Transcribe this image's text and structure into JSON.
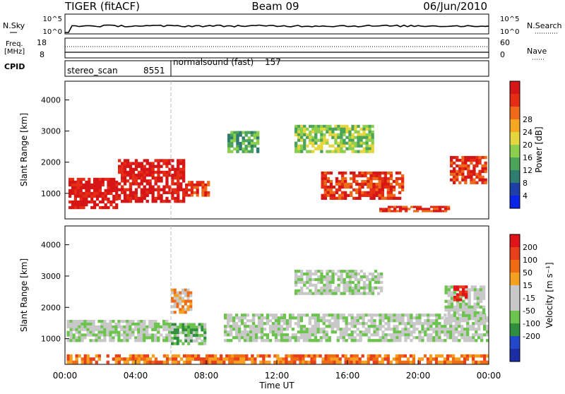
{
  "header": {
    "title": "TIGER (fitACF)",
    "beam": "Beam 09",
    "date": "06/Jun/2010"
  },
  "strips": {
    "nsky": {
      "label": "N.Sky",
      "ticks": [
        "10^5",
        "10^0"
      ],
      "right_label": "N.Search",
      "right_ticks": [
        "10^5",
        "10^0"
      ]
    },
    "freq": {
      "label_line1": "Freq.",
      "label_line2": "[MHz]",
      "ticks": [
        "18",
        "8"
      ],
      "right_label": "Nave",
      "right_ticks": [
        "60",
        "0"
      ]
    },
    "cpid": {
      "label": "CPID",
      "segments": [
        {
          "name": "stereo_scan",
          "id": "8551",
          "start_hour": 0,
          "end_hour": 6
        },
        {
          "name": "normalsound (fast)",
          "id": "157",
          "start_hour": 6,
          "end_hour": 24
        }
      ]
    }
  },
  "chart_data": [
    {
      "type": "heatmap",
      "name_panel": "power",
      "xlabel": "",
      "ylabel": "Slant Range [km]",
      "ylim": [
        180,
        4600
      ],
      "yticks": [
        1000,
        2000,
        3000,
        4000
      ],
      "xlim": [
        0,
        24
      ],
      "colorbar": {
        "label": "Power [dB]",
        "ticks": [
          "4",
          "8",
          "12",
          "16",
          "20",
          "24",
          "28"
        ],
        "colors": [
          "#0b25e8",
          "#1d3fa6",
          "#2e7d6f",
          "#4aa55a",
          "#8ccf4f",
          "#e6d63e",
          "#f5a623",
          "#ee6a18",
          "#e52d16",
          "#d61616"
        ]
      },
      "regions": [
        {
          "start_hour": 0.2,
          "end_hour": 3.0,
          "range_min": 500,
          "range_max": 1500,
          "level": 9
        },
        {
          "start_hour": 3.0,
          "end_hour": 6.8,
          "range_min": 700,
          "range_max": 2100,
          "level": 9
        },
        {
          "start_hour": 6.8,
          "end_hour": 8.2,
          "range_min": 900,
          "range_max": 1400,
          "level": 8
        },
        {
          "start_hour": 14.5,
          "end_hour": 19.2,
          "range_min": 800,
          "range_max": 1700,
          "level": 8
        },
        {
          "start_hour": 17.8,
          "end_hour": 21.8,
          "range_min": 400,
          "range_max": 600,
          "level": 8
        },
        {
          "start_hour": 21.8,
          "end_hour": 23.9,
          "range_min": 1300,
          "range_max": 2200,
          "level": 8
        },
        {
          "start_hour": 13.0,
          "end_hour": 17.5,
          "range_min": 2300,
          "range_max": 3200,
          "level": 4
        },
        {
          "start_hour": 9.2,
          "end_hour": 11.0,
          "range_min": 2300,
          "range_max": 3000,
          "level": 3
        }
      ]
    },
    {
      "type": "heatmap",
      "name_panel": "velocity",
      "xlabel": "Time UT",
      "ylabel": "Slant Range [km]",
      "ylim": [
        180,
        4600
      ],
      "yticks": [
        1000,
        2000,
        3000,
        4000
      ],
      "xlim": [
        0,
        24
      ],
      "xticks": [
        "00:00",
        "04:00",
        "08:00",
        "12:00",
        "16:00",
        "20:00",
        "00:00"
      ],
      "colorbar": {
        "label": "Velocity [m s⁻¹]",
        "ticks": [
          "200",
          "100",
          "50",
          "15",
          "-15",
          "-50",
          "-100",
          "-200"
        ],
        "colors": [
          "#1b2ea3",
          "#2347c9",
          "#2f8f3f",
          "#6cc44e",
          "#c8c8c8",
          "#c8c8c8",
          "#f5a020",
          "#ef6c14",
          "#e8401a",
          "#e0141a"
        ]
      },
      "regions": [
        {
          "start_hour": 0.1,
          "end_hour": 6.0,
          "range_min": 900,
          "range_max": 1600,
          "level": 4
        },
        {
          "start_hour": 6.0,
          "end_hour": 8.0,
          "range_min": 800,
          "range_max": 1500,
          "level": 3
        },
        {
          "start_hour": 6.0,
          "end_hour": 7.2,
          "range_min": 1800,
          "range_max": 2600,
          "level": 6
        },
        {
          "start_hour": 9.0,
          "end_hour": 24.0,
          "range_min": 900,
          "range_max": 1800,
          "level": 4
        },
        {
          "start_hour": 13.0,
          "end_hour": 18.0,
          "range_min": 2400,
          "range_max": 3200,
          "level": 4
        },
        {
          "start_hour": 21.5,
          "end_hour": 23.8,
          "range_min": 1600,
          "range_max": 2700,
          "level": 4
        },
        {
          "start_hour": 22.0,
          "end_hour": 22.8,
          "range_min": 2200,
          "range_max": 2700,
          "level": 9
        },
        {
          "start_hour": 0.1,
          "end_hour": 24.0,
          "range_min": 200,
          "range_max": 500,
          "level": 7
        }
      ]
    }
  ]
}
